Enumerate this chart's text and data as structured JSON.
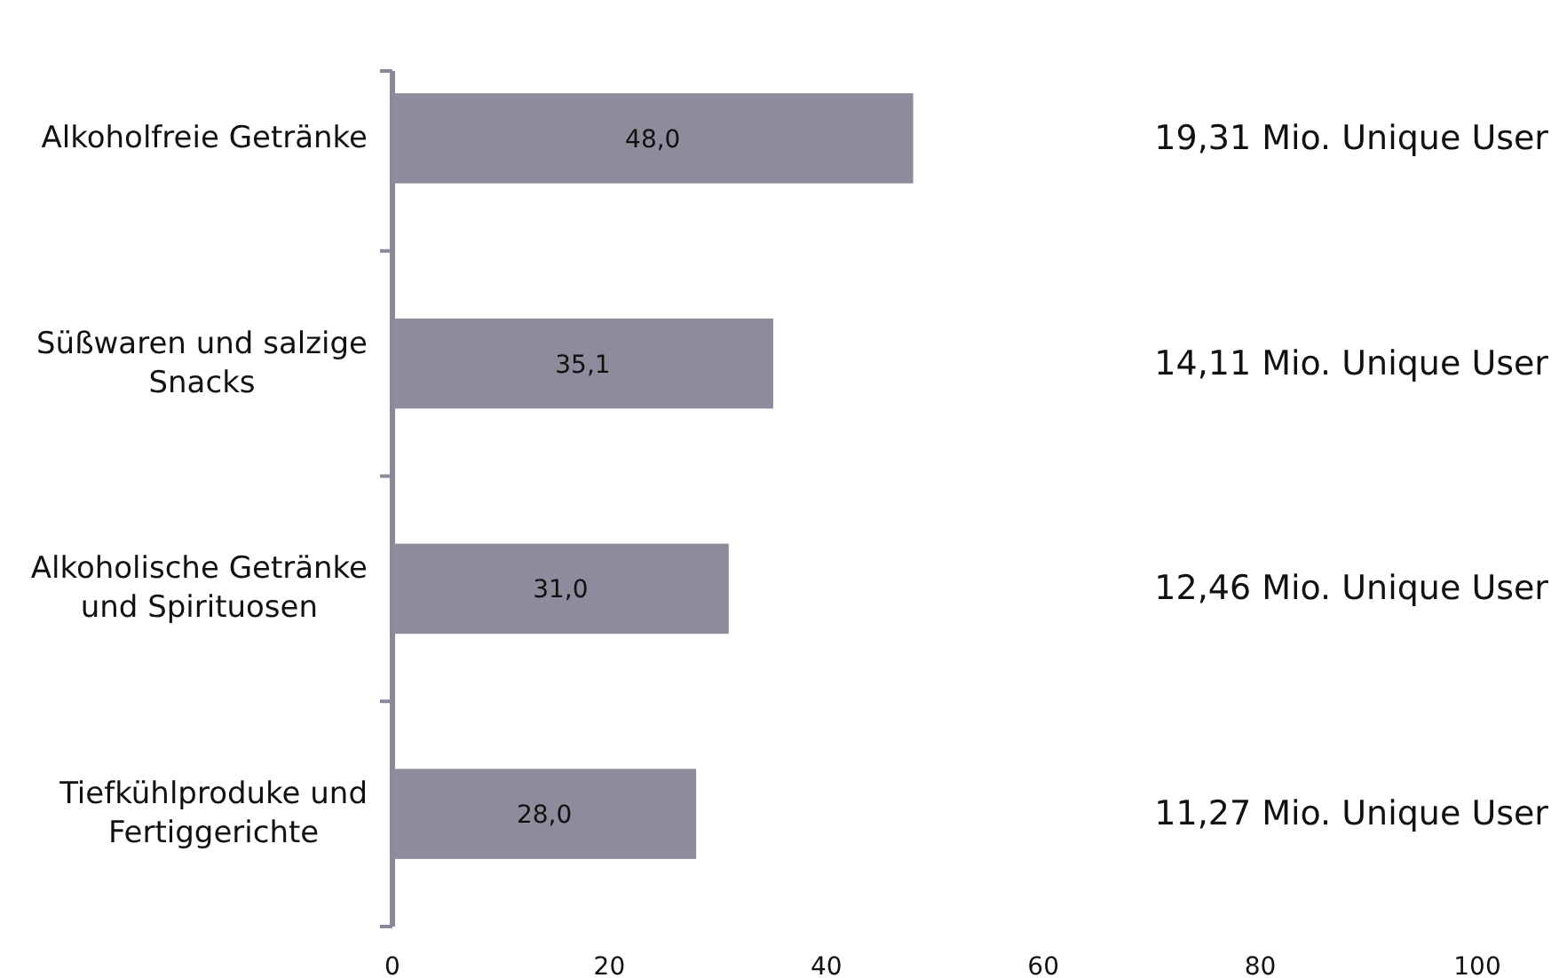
{
  "chart_data": {
    "type": "bar",
    "orientation": "horizontal",
    "categories": [
      "Alkoholfreie Getränke",
      "Süßwaren und salzige Snacks",
      "Alkoholische Getränke und Spirituosen",
      "Tiefkühlproduke und Fertiggerichte"
    ],
    "values": [
      48.0,
      35.1,
      31.0,
      28.0
    ],
    "value_labels": [
      "48,0",
      "35,1",
      "31,0",
      "28,0"
    ],
    "color": "#8e8c9c",
    "xlim": [
      0,
      100
    ],
    "xticks": [
      0,
      20,
      40,
      60,
      80,
      100
    ],
    "annotations": [
      "19,31 Mio. Unique User",
      "14,11 Mio. Unique User",
      "12,46 Mio. Unique User",
      "11,27 Mio. Unique User"
    ]
  }
}
